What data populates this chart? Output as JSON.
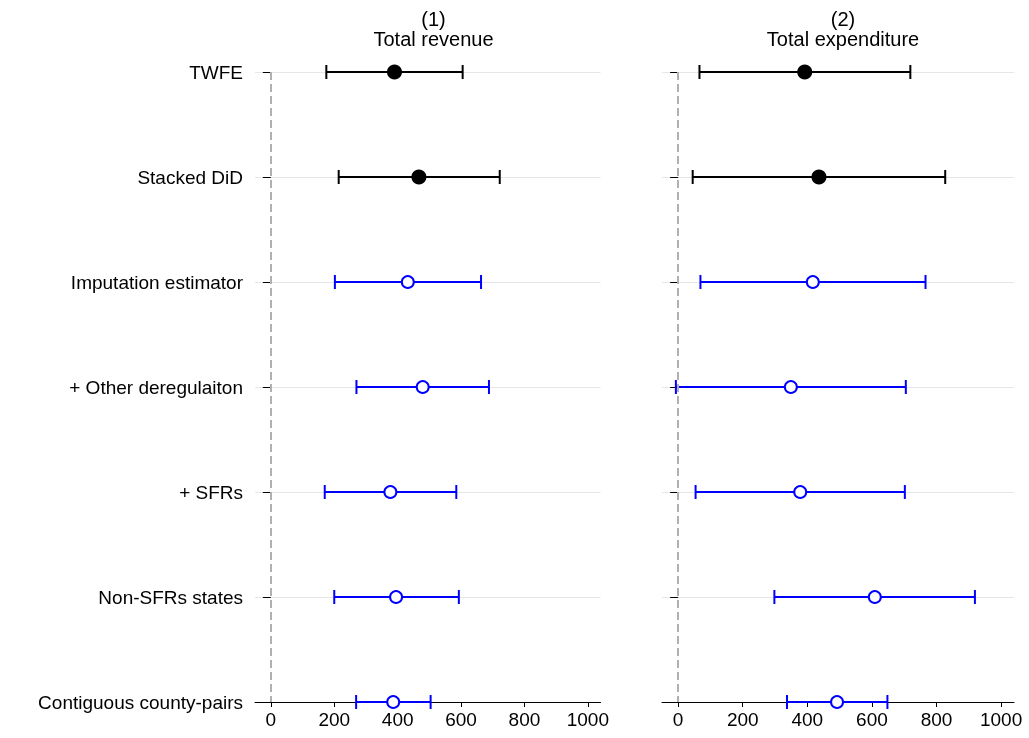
{
  "chart_data": [
    {
      "type": "scatter",
      "title": "(1)",
      "subtitle": "Total revenue",
      "orientation": "horizontal",
      "categories": [
        "TWFE",
        "Stacked DiD",
        "Imputation estimator",
        "+ Other deregulaiton",
        "+ SFRs",
        "Non-SFRs states",
        "Contiguous county-pairs"
      ],
      "series": [
        {
          "color": "#000000",
          "marker": "circle",
          "values": [
            390,
            467,
            null,
            null,
            null,
            null,
            null
          ],
          "errors": [
            [
              175,
              605
            ],
            [
              214,
              722
            ],
            null,
            null,
            null,
            null,
            null
          ]
        },
        {
          "color": "#0000ff",
          "marker": "circle",
          "values": [
            null,
            null,
            432,
            479,
            377,
            395,
            386
          ],
          "errors": [
            null,
            null,
            [
              202,
              663
            ],
            [
              270,
              688
            ],
            [
              170,
              585
            ],
            [
              200,
              593
            ],
            [
              269,
              504
            ]
          ]
        }
      ],
      "xlim": [
        -50,
        1040
      ],
      "xticks": [
        0,
        200,
        400,
        600,
        800,
        1000
      ],
      "grid": "y",
      "ref_lines": [
        {
          "axis": "x",
          "value": 0,
          "color": "#b0b0b0",
          "line_style": "dashed"
        }
      ]
    },
    {
      "type": "scatter",
      "title": "(2)",
      "subtitle": "Total expenditure",
      "orientation": "horizontal",
      "tick_labels": "x",
      "categories": [
        null,
        null,
        null,
        null,
        null,
        null,
        null
      ],
      "series": [
        {
          "color": "#000000",
          "marker": "circle",
          "values": [
            392,
            436,
            null,
            null,
            null,
            null,
            null
          ],
          "errors": [
            [
              66,
              719
            ],
            [
              45,
              827
            ],
            null,
            null,
            null,
            null,
            null
          ]
        },
        {
          "color": "#0000ff",
          "marker": "circle",
          "values": [
            null,
            null,
            417,
            349,
            378,
            609,
            492
          ],
          "errors": [
            null,
            null,
            [
              69,
              766
            ],
            [
              -7,
              705
            ],
            [
              54,
              702
            ],
            [
              298,
              919
            ],
            [
              337,
              648
            ]
          ]
        }
      ],
      "xlim": [
        -50,
        1040
      ],
      "xticks": [
        0,
        200,
        400,
        600,
        800,
        1000
      ],
      "grid": "y",
      "ref_lines": [
        {
          "axis": "x",
          "value": 0,
          "color": "#b0b0b0",
          "line_style": "dashed"
        }
      ]
    }
  ]
}
